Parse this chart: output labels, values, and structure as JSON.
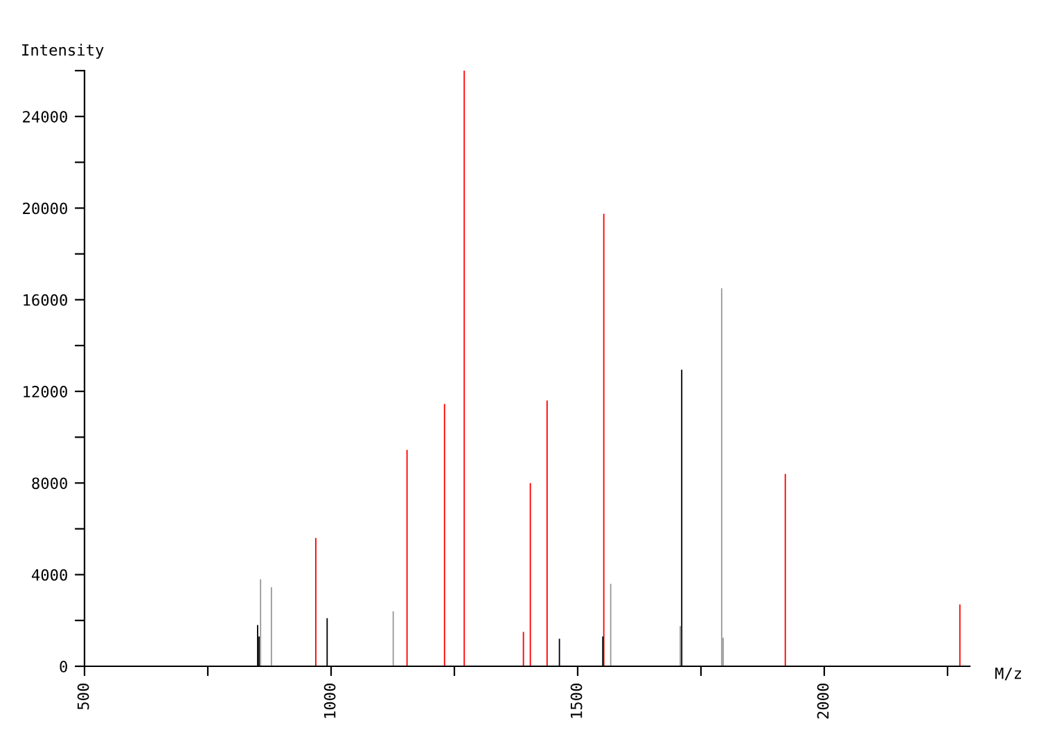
{
  "chart_data": {
    "type": "bar",
    "xlabel": "M/z",
    "ylabel": "Intensity",
    "xlim": [
      500,
      2295
    ],
    "ylim": [
      0,
      26000
    ],
    "xticks": [
      500,
      {
        "value": 750,
        "label": null
      },
      1000,
      {
        "value": 1250,
        "label": null
      },
      1500,
      {
        "value": 1750,
        "label": null
      },
      2000,
      {
        "value": 2250,
        "label": null
      }
    ],
    "yticks": [
      0,
      {
        "value": 2000,
        "label": null
      },
      4000,
      {
        "value": 6000,
        "label": null
      },
      8000,
      {
        "value": 10000,
        "label": null
      },
      12000,
      {
        "value": 14000,
        "label": null
      },
      16000,
      {
        "value": 18000,
        "label": null
      },
      20000,
      {
        "value": 22000,
        "label": null
      },
      24000,
      {
        "value": 26000,
        "label": null
      }
    ],
    "grid": false,
    "legend": false,
    "series": [
      {
        "color": "#ff0000",
        "x": [
          969,
          1154,
          1230,
          1270,
          1390,
          1404,
          1438,
          1553,
          1921,
          2275
        ],
        "values": [
          5600,
          9450,
          11450,
          26000,
          1500,
          8000,
          11600,
          19750,
          8400,
          2700
        ]
      },
      {
        "color": "#000000",
        "x": [
          851,
          854,
          992,
          1463,
          1551,
          1711
        ],
        "values": [
          1800,
          1300,
          2100,
          1200,
          1300,
          12950
        ]
      },
      {
        "color": "#999999",
        "x": [
          857,
          879,
          1126,
          1567,
          1708,
          1792,
          1795
        ],
        "values": [
          3800,
          3450,
          2400,
          3600,
          1750,
          16500,
          1250
        ]
      }
    ]
  }
}
